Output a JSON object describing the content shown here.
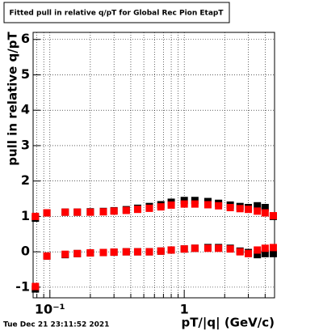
{
  "chart_data": {
    "type": "scatter",
    "title": "Fitted pull in relative q/pT for Global Rec Pion EtapT",
    "x_label": "pT/|q| (GeV/c)",
    "y_label": "pull in relative q/pT",
    "footer": "Tue Dec 21 23:11:52 2021",
    "x_log": true,
    "grid": true,
    "xlim": [
      0.075,
      4.7
    ],
    "ylim": [
      -1.3,
      6.2
    ],
    "xticks": [
      {
        "value": 0.1,
        "label": "10⁻¹"
      },
      1
    ],
    "x_minor_ticks": [
      0.08,
      0.09,
      0.2,
      0.3,
      0.4,
      0.5,
      0.6,
      0.7,
      0.8,
      0.9,
      2,
      3,
      4
    ],
    "yticks": [
      -1,
      0,
      1,
      2,
      3,
      4,
      5,
      6
    ],
    "x": [
      0.078,
      0.095,
      0.13,
      0.16,
      0.2,
      0.25,
      0.3,
      0.37,
      0.45,
      0.55,
      0.67,
      0.8,
      1.0,
      1.2,
      1.5,
      1.8,
      2.2,
      2.6,
      3.0,
      3.5,
      4.0,
      4.6
    ],
    "series": [
      {
        "color": "#000000",
        "values": [
          0.95,
          1.1,
          1.12,
          1.12,
          1.13,
          1.14,
          1.16,
          1.19,
          1.23,
          1.28,
          1.33,
          1.4,
          1.45,
          1.45,
          1.42,
          1.37,
          1.32,
          1.28,
          1.25,
          1.3,
          1.25,
          1.0
        ]
      },
      {
        "color": "#000000",
        "values": [
          -1.05,
          -0.12,
          -0.08,
          -0.05,
          -0.03,
          -0.02,
          -0.01,
          0,
          0,
          0,
          0.02,
          0.05,
          0.08,
          0.1,
          0.12,
          0.12,
          0.1,
          0.02,
          -0.02,
          -0.08,
          -0.05,
          -0.05
        ]
      },
      {
        "color": "#ff0000",
        "values": [
          1.0,
          1.1,
          1.12,
          1.12,
          1.12,
          1.13,
          1.15,
          1.17,
          1.2,
          1.23,
          1.27,
          1.32,
          1.35,
          1.35,
          1.33,
          1.3,
          1.25,
          1.22,
          1.2,
          1.15,
          1.1,
          1.02
        ]
      },
      {
        "color": "#ff0000",
        "values": [
          -0.98,
          -0.12,
          -0.07,
          -0.05,
          -0.03,
          -0.02,
          -0.01,
          0,
          0,
          0,
          0.02,
          0.05,
          0.08,
          0.1,
          0.1,
          0.1,
          0.08,
          0,
          -0.05,
          0.05,
          0.1,
          0.12
        ]
      }
    ]
  }
}
